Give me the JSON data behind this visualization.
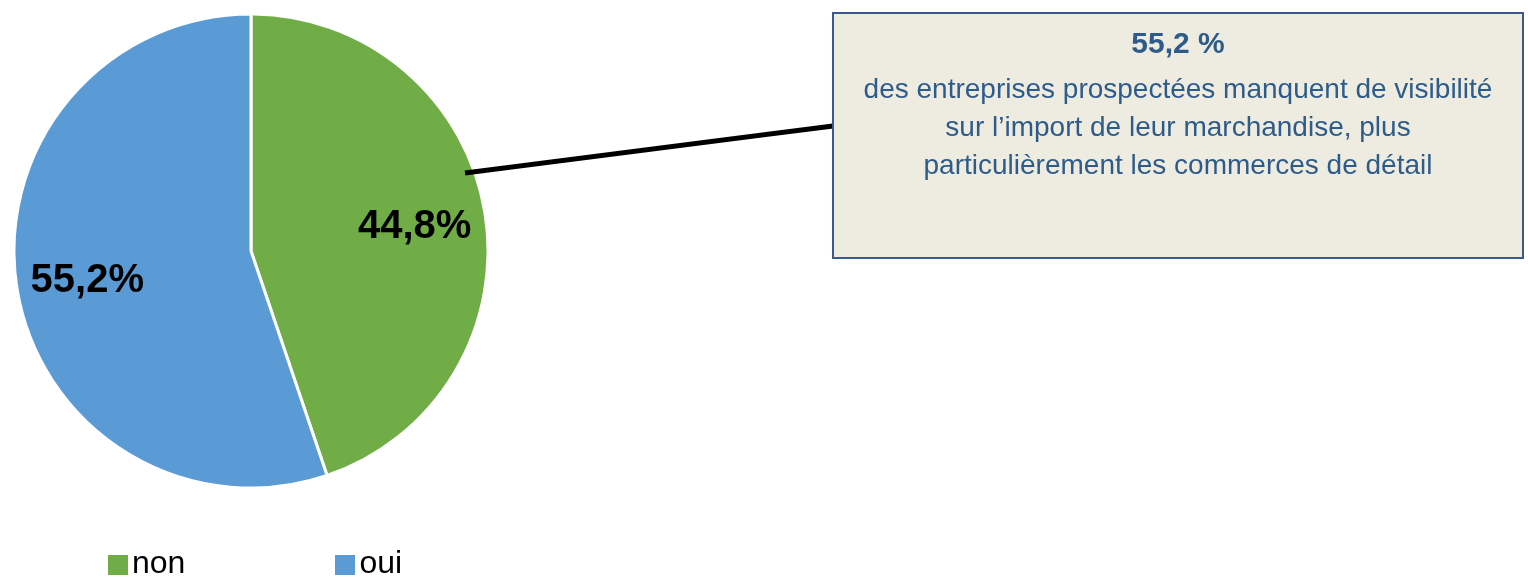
{
  "chart_data": {
    "type": "pie",
    "categories": [
      "non",
      "oui"
    ],
    "values": [
      44.8,
      55.2
    ],
    "colors": [
      "#70ad47",
      "#5b9bd5"
    ],
    "value_labels": [
      "44,8%",
      "55,2%"
    ],
    "legend": "bottom left",
    "annotations": [
      "55,2 %",
      "des entreprises prospectées manquent de visibilité sur l’import de leur marchandise, plus particulièrement les commerces de détail"
    ]
  }
}
